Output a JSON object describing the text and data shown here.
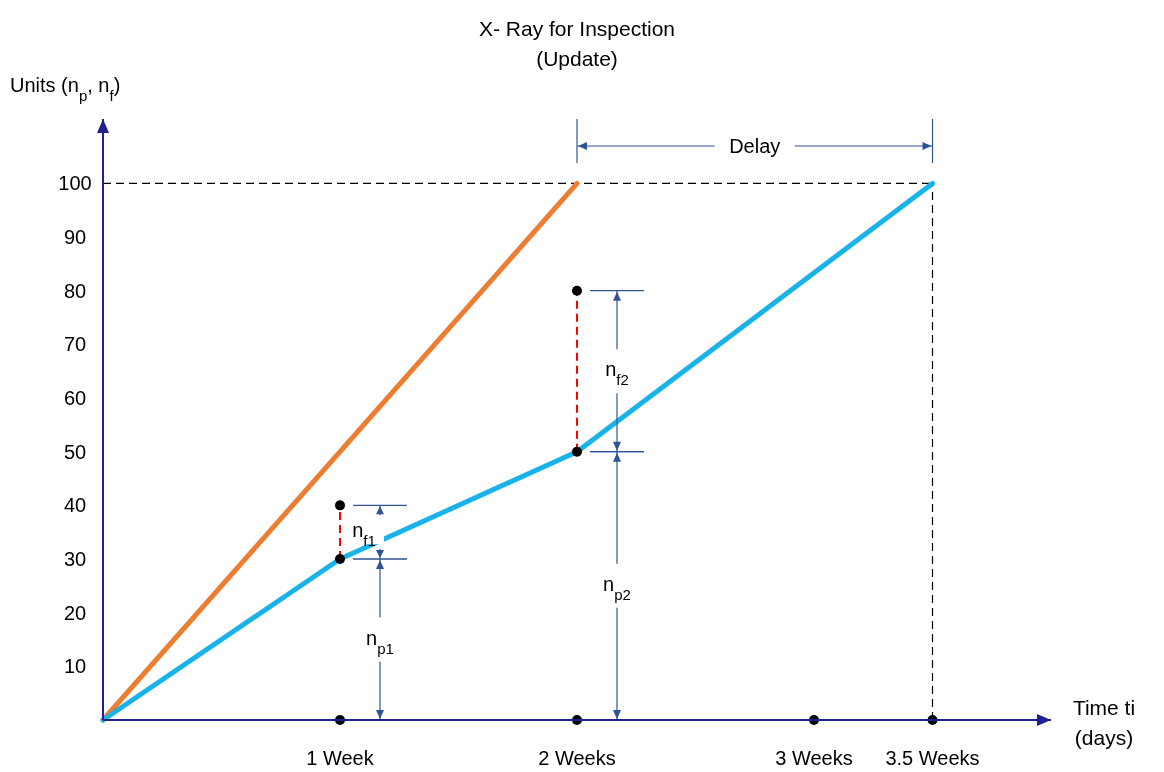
{
  "chart_data": {
    "type": "line",
    "title": "X- Ray for Inspection\n(Update)",
    "ylabel": "Units (n$_{p}$, n$_{f}$)",
    "xlabel": "Time ti\n(days)",
    "xlim": [
      0,
      4
    ],
    "xticks": [
      {
        "value": 1,
        "label": "1 Week"
      },
      {
        "value": 2,
        "label": "2 Weeks"
      },
      {
        "value": 3,
        "label": "3 Weeks"
      },
      {
        "value": 3.5,
        "label": "3.5 Weeks"
      }
    ],
    "ylim": [
      0,
      112
    ],
    "yticks": [
      10,
      20,
      30,
      40,
      50,
      60,
      70,
      80,
      90,
      100
    ],
    "grid": false,
    "marker": "none",
    "line_style": "solid",
    "series": [
      {
        "color": "#ed7d31",
        "x": [
          0,
          2
        ],
        "values": [
          0,
          100
        ]
      },
      {
        "color": "#19b3ea",
        "x": [
          0,
          1,
          2,
          3.5
        ],
        "values": [
          0,
          30,
          50,
          100
        ]
      },
      {
        "type": "line",
        "line_style": "dashed",
        "color": "#ff0000",
        "x": [
          1,
          1
        ],
        "values": [
          30,
          40
        ]
      },
      {
        "type": "line",
        "line_style": "dashed",
        "color": "#ff0000",
        "x": [
          2,
          2
        ],
        "values": [
          50,
          80
        ]
      },
      {
        "type": "scatter",
        "marker": "circle",
        "color": "#000000",
        "x": [
          1,
          1,
          2,
          2,
          1,
          2,
          3,
          3.5
        ],
        "values": [
          40,
          30,
          80,
          50,
          0,
          0,
          0,
          0
        ]
      }
    ],
    "ref_lines": [
      {
        "axis": "y",
        "value": 100,
        "color": "#000000",
        "line_style": "dashed"
      },
      {
        "axis": "x",
        "value": 3.5,
        "color": "#000000",
        "line_style": "dashed"
      }
    ],
    "annotations": [
      "n$_{p1}$",
      "n$_{f1}$",
      "n$_{p2}$",
      "n$_{f2}$",
      "Delay"
    ]
  }
}
